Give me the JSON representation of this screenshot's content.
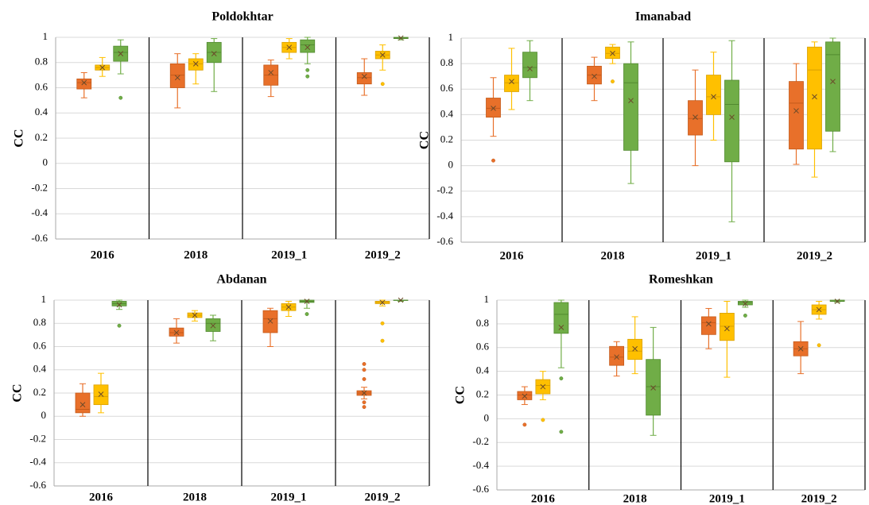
{
  "chart_data": [
    {
      "type": "box",
      "title": "Poldokhtar",
      "ylabel": "CC",
      "categories": [
        "2016",
        "2018",
        "2019_1",
        "2019_2"
      ],
      "ylim": [
        -0.6,
        1
      ],
      "yticks": [
        -0.6,
        -0.4,
        -0.2,
        0,
        0.2,
        0.4,
        0.6,
        0.8,
        1
      ],
      "grid": true,
      "series": [
        {
          "color": "#e8702a",
          "values": [
            {
              "min": 0.52,
              "q1": 0.59,
              "median": 0.64,
              "q3": 0.67,
              "max": 0.72,
              "mean": 0.64,
              "outliers": []
            },
            {
              "min": 0.44,
              "q1": 0.6,
              "median": 0.7,
              "q3": 0.79,
              "max": 0.87,
              "mean": 0.68,
              "outliers": []
            },
            {
              "min": 0.53,
              "q1": 0.62,
              "median": 0.7,
              "q3": 0.78,
              "max": 0.82,
              "mean": 0.72,
              "outliers": []
            },
            {
              "min": 0.54,
              "q1": 0.63,
              "median": 0.68,
              "q3": 0.72,
              "max": 0.83,
              "mean": 0.69,
              "outliers": []
            }
          ]
        },
        {
          "color": "#ffc000",
          "values": [
            {
              "min": 0.69,
              "q1": 0.74,
              "median": 0.76,
              "q3": 0.78,
              "max": 0.84,
              "mean": 0.76,
              "outliers": []
            },
            {
              "min": 0.63,
              "q1": 0.74,
              "median": 0.79,
              "q3": 0.83,
              "max": 0.87,
              "mean": 0.79,
              "outliers": []
            },
            {
              "min": 0.83,
              "q1": 0.88,
              "median": 0.92,
              "q3": 0.96,
              "max": 0.99,
              "mean": 0.92,
              "outliers": []
            },
            {
              "min": 0.74,
              "q1": 0.83,
              "median": 0.86,
              "q3": 0.89,
              "max": 0.94,
              "mean": 0.86,
              "outliers": [
                0.63
              ]
            }
          ]
        },
        {
          "color": "#70ad47",
          "values": [
            {
              "min": 0.71,
              "q1": 0.81,
              "median": 0.88,
              "q3": 0.93,
              "max": 0.98,
              "mean": 0.87,
              "outliers": [
                0.52
              ]
            },
            {
              "min": 0.57,
              "q1": 0.8,
              "median": 0.88,
              "q3": 0.96,
              "max": 0.99,
              "mean": 0.87,
              "outliers": []
            },
            {
              "min": 0.79,
              "q1": 0.88,
              "median": 0.94,
              "q3": 0.98,
              "max": 1,
              "mean": 0.92,
              "outliers": [
                0.69,
                0.74
              ]
            },
            {
              "min": 0.98,
              "q1": 0.99,
              "median": 0.995,
              "q3": 1,
              "max": 1,
              "mean": 0.995,
              "outliers": []
            }
          ]
        }
      ]
    },
    {
      "type": "box",
      "title": "Imanabad",
      "ylabel": "CC",
      "categories": [
        "2016",
        "2018",
        "2019_1",
        "2019_2"
      ],
      "ylim": [
        -0.6,
        1
      ],
      "yticks": [
        -0.6,
        -0.4,
        -0.2,
        0,
        0.2,
        0.4,
        0.6,
        0.8,
        1
      ],
      "grid": true,
      "series": [
        {
          "color": "#e8702a",
          "values": [
            {
              "min": 0.23,
              "q1": 0.38,
              "median": 0.45,
              "q3": 0.53,
              "max": 0.69,
              "mean": 0.45,
              "outliers": [
                0.04
              ]
            },
            {
              "min": 0.51,
              "q1": 0.64,
              "median": 0.71,
              "q3": 0.78,
              "max": 0.85,
              "mean": 0.7,
              "outliers": []
            },
            {
              "min": 0,
              "q1": 0.24,
              "median": 0.37,
              "q3": 0.51,
              "max": 0.75,
              "mean": 0.38,
              "outliers": []
            },
            {
              "min": 0.01,
              "q1": 0.13,
              "median": 0.49,
              "q3": 0.66,
              "max": 0.8,
              "mean": 0.43,
              "outliers": []
            }
          ]
        },
        {
          "color": "#ffc000",
          "values": [
            {
              "min": 0.44,
              "q1": 0.58,
              "median": 0.65,
              "q3": 0.71,
              "max": 0.92,
              "mean": 0.66,
              "outliers": []
            },
            {
              "min": 0.8,
              "q1": 0.84,
              "median": 0.88,
              "q3": 0.93,
              "max": 0.95,
              "mean": 0.88,
              "outliers": [
                0.66
              ]
            },
            {
              "min": 0.2,
              "q1": 0.4,
              "median": 0.54,
              "q3": 0.71,
              "max": 0.89,
              "mean": 0.54,
              "outliers": []
            },
            {
              "min": -0.09,
              "q1": 0.13,
              "median": 0.75,
              "q3": 0.93,
              "max": 0.97,
              "mean": 0.54,
              "outliers": []
            }
          ]
        },
        {
          "color": "#70ad47",
          "values": [
            {
              "min": 0.51,
              "q1": 0.69,
              "median": 0.77,
              "q3": 0.89,
              "max": 0.98,
              "mean": 0.76,
              "outliers": []
            },
            {
              "min": -0.14,
              "q1": 0.12,
              "median": 0.65,
              "q3": 0.8,
              "max": 0.97,
              "mean": 0.51,
              "outliers": []
            },
            {
              "min": -0.44,
              "q1": 0.03,
              "median": 0.48,
              "q3": 0.67,
              "max": 0.98,
              "mean": 0.38,
              "outliers": []
            },
            {
              "min": 0.11,
              "q1": 0.27,
              "median": 0.87,
              "q3": 0.97,
              "max": 1,
              "mean": 0.66,
              "outliers": []
            }
          ]
        }
      ]
    },
    {
      "type": "box",
      "title": "Abdanan",
      "ylabel": "CC",
      "categories": [
        "2016",
        "2018",
        "2019_1",
        "2019_2"
      ],
      "ylim": [
        -0.6,
        1
      ],
      "yticks": [
        -0.6,
        -0.4,
        -0.2,
        0,
        0.2,
        0.4,
        0.6,
        0.8,
        1
      ],
      "grid": true,
      "series": [
        {
          "color": "#e8702a",
          "values": [
            {
              "min": 0,
              "q1": 0.03,
              "median": 0.06,
              "q3": 0.2,
              "max": 0.28,
              "mean": 0.1,
              "outliers": []
            },
            {
              "min": 0.63,
              "q1": 0.69,
              "median": 0.72,
              "q3": 0.76,
              "max": 0.84,
              "mean": 0.72,
              "outliers": []
            },
            {
              "min": 0.6,
              "q1": 0.72,
              "median": 0.84,
              "q3": 0.91,
              "max": 0.93,
              "mean": 0.82,
              "outliers": []
            },
            {
              "min": 0.15,
              "q1": 0.18,
              "median": 0.2,
              "q3": 0.22,
              "max": 0.25,
              "mean": 0.2,
              "outliers": [
                0.08,
                0.12,
                0.32,
                0.4,
                0.45
              ]
            }
          ]
        },
        {
          "color": "#ffc000",
          "values": [
            {
              "min": 0.03,
              "q1": 0.1,
              "median": 0.17,
              "q3": 0.27,
              "max": 0.37,
              "mean": 0.19,
              "outliers": []
            },
            {
              "min": 0.82,
              "q1": 0.85,
              "median": 0.87,
              "q3": 0.89,
              "max": 0.91,
              "mean": 0.87,
              "outliers": []
            },
            {
              "min": 0.86,
              "q1": 0.91,
              "median": 0.94,
              "q3": 0.97,
              "max": 0.99,
              "mean": 0.94,
              "outliers": []
            },
            {
              "min": 0.95,
              "q1": 0.97,
              "median": 0.98,
              "q3": 0.99,
              "max": 1,
              "mean": 0.98,
              "outliers": [
                0.65,
                0.8
              ]
            }
          ]
        },
        {
          "color": "#70ad47",
          "values": [
            {
              "min": 0.92,
              "q1": 0.95,
              "median": 0.97,
              "q3": 0.99,
              "max": 1,
              "mean": 0.96,
              "outliers": [
                0.78
              ]
            },
            {
              "min": 0.65,
              "q1": 0.73,
              "median": 0.8,
              "q3": 0.84,
              "max": 0.87,
              "mean": 0.78,
              "outliers": []
            },
            {
              "min": 0.93,
              "q1": 0.98,
              "median": 0.99,
              "q3": 1,
              "max": 1,
              "mean": 0.99,
              "outliers": [
                0.88
              ]
            },
            {
              "min": 0.99,
              "q1": 1,
              "median": 1,
              "q3": 1,
              "max": 1,
              "mean": 1,
              "outliers": []
            }
          ]
        }
      ]
    },
    {
      "type": "box",
      "title": "Romeshkan",
      "ylabel": "CC",
      "categories": [
        "2016",
        "2018",
        "2019_1",
        "2019_2"
      ],
      "ylim": [
        -0.6,
        1
      ],
      "yticks": [
        -0.6,
        -0.4,
        -0.2,
        0,
        0.2,
        0.4,
        0.6,
        0.8,
        1
      ],
      "grid": true,
      "series": [
        {
          "color": "#e8702a",
          "values": [
            {
              "min": 0.12,
              "q1": 0.16,
              "median": 0.2,
              "q3": 0.23,
              "max": 0.27,
              "mean": 0.19,
              "outliers": [
                -0.05
              ]
            },
            {
              "min": 0.36,
              "q1": 0.45,
              "median": 0.52,
              "q3": 0.61,
              "max": 0.65,
              "mean": 0.52,
              "outliers": []
            },
            {
              "min": 0.59,
              "q1": 0.71,
              "median": 0.81,
              "q3": 0.86,
              "max": 0.93,
              "mean": 0.8,
              "outliers": []
            },
            {
              "min": 0.38,
              "q1": 0.53,
              "median": 0.59,
              "q3": 0.65,
              "max": 0.82,
              "mean": 0.59,
              "outliers": []
            }
          ]
        },
        {
          "color": "#ffc000",
          "values": [
            {
              "min": 0.16,
              "q1": 0.21,
              "median": 0.28,
              "q3": 0.33,
              "max": 0.4,
              "mean": 0.27,
              "outliers": [
                -0.01
              ]
            },
            {
              "min": 0.38,
              "q1": 0.5,
              "median": 0.57,
              "q3": 0.67,
              "max": 0.86,
              "mean": 0.59,
              "outliers": []
            },
            {
              "min": 0.35,
              "q1": 0.66,
              "median": 0.78,
              "q3": 0.89,
              "max": 0.99,
              "mean": 0.76,
              "outliers": []
            },
            {
              "min": 0.84,
              "q1": 0.88,
              "median": 0.92,
              "q3": 0.96,
              "max": 0.99,
              "mean": 0.92,
              "outliers": [
                0.62
              ]
            }
          ]
        },
        {
          "color": "#70ad47",
          "values": [
            {
              "min": 0.43,
              "q1": 0.72,
              "median": 0.88,
              "q3": 0.98,
              "max": 1,
              "mean": 0.77,
              "outliers": [
                -0.11,
                0.34
              ]
            },
            {
              "min": -0.14,
              "q1": 0.03,
              "median": 0.27,
              "q3": 0.5,
              "max": 0.77,
              "mean": 0.26,
              "outliers": []
            },
            {
              "min": 0.94,
              "q1": 0.96,
              "median": 0.98,
              "q3": 0.99,
              "max": 1,
              "mean": 0.97,
              "outliers": [
                0.87
              ]
            },
            {
              "min": 0.98,
              "q1": 0.99,
              "median": 0.99,
              "q3": 1,
              "max": 1,
              "mean": 0.99,
              "outliers": []
            }
          ]
        }
      ]
    }
  ]
}
